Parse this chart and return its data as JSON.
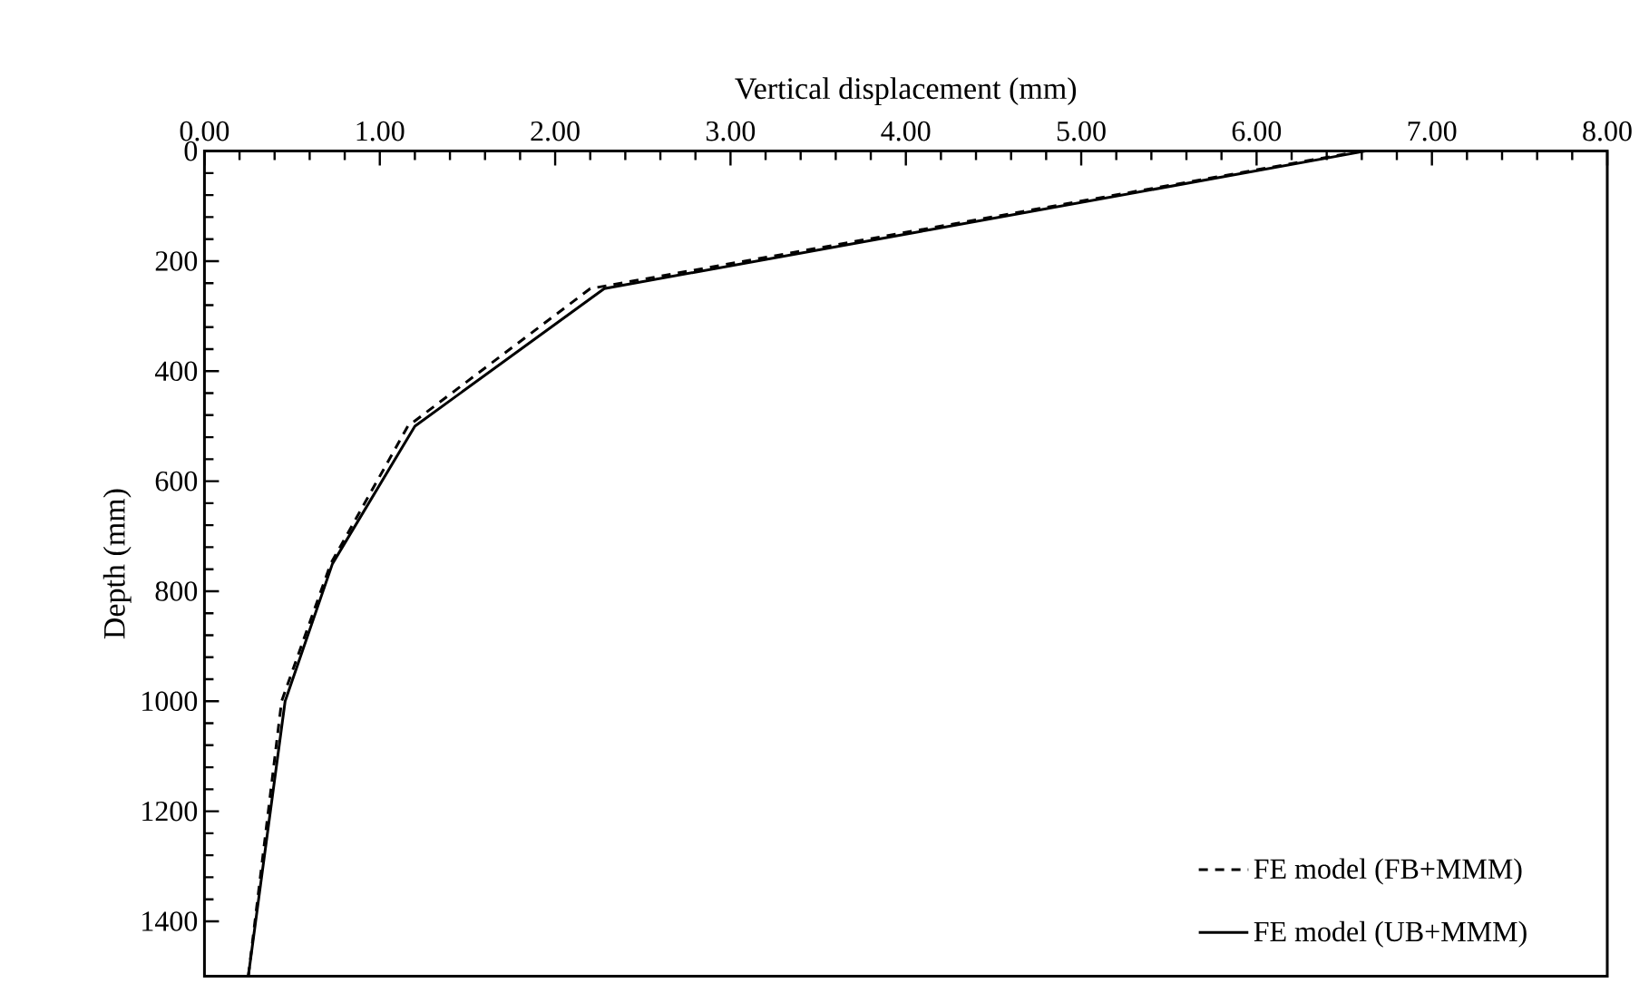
{
  "chart_data": {
    "type": "line",
    "xlabel": "Vertical displacement (mm)",
    "ylabel": "Depth (mm)",
    "xlim": [
      0,
      8
    ],
    "ylim": [
      1500,
      0
    ],
    "xticks": [
      {
        "value": 0,
        "label": "0.00"
      },
      {
        "value": 1,
        "label": "1.00"
      },
      {
        "value": 2,
        "label": "2.00"
      },
      {
        "value": 3,
        "label": "3.00"
      },
      {
        "value": 4,
        "label": "4.00"
      },
      {
        "value": 5,
        "label": "5.00"
      },
      {
        "value": 6,
        "label": "6.00"
      },
      {
        "value": 7,
        "label": "7.00"
      },
      {
        "value": 8,
        "label": "8.00"
      }
    ],
    "yticks": [
      0,
      200,
      400,
      600,
      800,
      1000,
      1200,
      1400
    ],
    "legend": "bottom right",
    "series": [
      {
        "name": "FE model (FB+MMM)",
        "color": "#000000",
        "line_style": "dashed",
        "x": [
          6.6,
          2.2,
          1.16,
          0.72,
          0.44,
          0.25
        ],
        "values": [
          0,
          250,
          500,
          750,
          1000,
          1500
        ]
      },
      {
        "name": "FE model (UB+MMM)",
        "color": "#000000",
        "line_style": "solid",
        "x": [
          6.62,
          2.28,
          1.2,
          0.73,
          0.46,
          0.25
        ],
        "values": [
          0,
          250,
          500,
          750,
          1000,
          1500
        ]
      }
    ]
  }
}
